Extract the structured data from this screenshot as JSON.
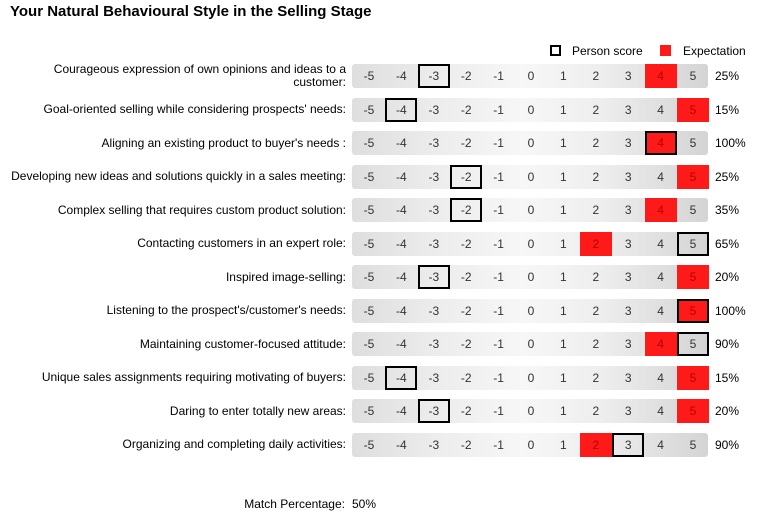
{
  "title": "Your Natural Behavioural Style in the Selling Stage",
  "legend": {
    "person": "Person score",
    "expectation": "Expectation"
  },
  "match": {
    "label": "Match Percentage:",
    "value": "50%"
  },
  "colors": {
    "expectation": "#ff1a1a",
    "person_border": "#000000"
  },
  "chart_data": {
    "type": "table",
    "scale": [
      -5,
      -4,
      -3,
      -2,
      -1,
      0,
      1,
      2,
      3,
      4,
      5
    ],
    "rows": [
      {
        "label": "Courageous expression of own opinions and ideas to a customer:",
        "person": -3,
        "expectation": [
          4
        ],
        "percent": "25%"
      },
      {
        "label": "Goal-oriented selling while considering prospects' needs:",
        "person": -4,
        "expectation": [
          5
        ],
        "percent": "15%"
      },
      {
        "label": "Aligning an existing product to buyer's needs :",
        "person": 4,
        "expectation": [
          4
        ],
        "percent": "100%"
      },
      {
        "label": "Developing new ideas and solutions quickly in a sales meeting:",
        "person": -2,
        "expectation": [
          5
        ],
        "percent": "25%"
      },
      {
        "label": "Complex selling that requires custom product solution:",
        "person": -2,
        "expectation": [
          4
        ],
        "percent": "35%"
      },
      {
        "label": "Contacting customers in an expert role:",
        "person": 5,
        "expectation": [
          2
        ],
        "percent": "65%"
      },
      {
        "label": "Inspired image-selling:",
        "person": -3,
        "expectation": [
          5
        ],
        "percent": "20%"
      },
      {
        "label": "Listening to the prospect's/customer's needs:",
        "person": 5,
        "expectation": [
          5
        ],
        "percent": "100%"
      },
      {
        "label": "Maintaining customer-focused attitude:",
        "person": 5,
        "expectation": [
          4
        ],
        "percent": "90%"
      },
      {
        "label": "Unique sales assignments requiring motivating of buyers:",
        "person": -4,
        "expectation": [
          5
        ],
        "percent": "15%"
      },
      {
        "label": "Daring to enter totally new areas:",
        "person": -3,
        "expectation": [
          5
        ],
        "percent": "20%"
      },
      {
        "label": "Organizing and completing daily activities:",
        "person": 3,
        "expectation": [
          2
        ],
        "percent": "90%"
      }
    ]
  }
}
